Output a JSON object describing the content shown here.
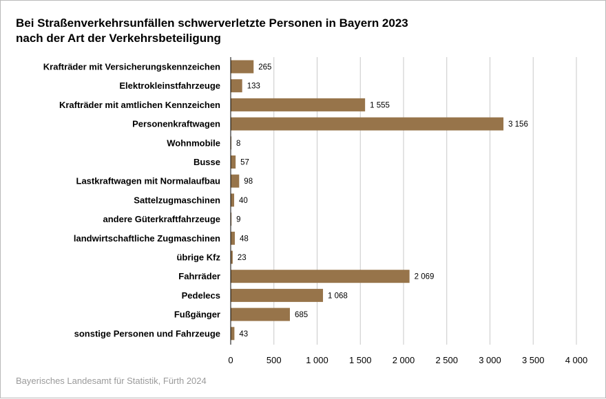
{
  "chart_data": {
    "type": "bar",
    "orientation": "horizontal",
    "title_line1": "Bei Straßenverkehrsunfällen schwerverletzte Personen in Bayern 2023",
    "title_line2": "nach der Art der Verkehrsbeteiligung",
    "categories": [
      "Krafträder mit Versicherungskennzeichen",
      "Elektrokleinstfahrzeuge",
      "Krafträder mit amtlichen Kennzeichen",
      "Personenkraftwagen",
      "Wohnmobile",
      "Busse",
      "Lastkraftwagen mit Normalaufbau",
      "Sattelzugmaschinen",
      "andere Güterkraftfahrzeuge",
      "landwirtschaftliche Zugmaschinen",
      "übrige Kfz",
      "Fahrräder",
      "Pedelecs",
      "Fußgänger",
      "sonstige Personen und Fahrzeuge"
    ],
    "values": [
      265,
      133,
      1555,
      3156,
      8,
      57,
      98,
      40,
      9,
      48,
      23,
      2069,
      1068,
      685,
      43
    ],
    "value_labels": [
      "265",
      "133",
      "1 555",
      "3 156",
      "8",
      "57",
      "98",
      "40",
      "9",
      "48",
      "23",
      "2 069",
      "1 068",
      "685",
      "43"
    ],
    "xlim": [
      0,
      4000
    ],
    "x_ticks": [
      0,
      500,
      1000,
      1500,
      2000,
      2500,
      3000,
      3500,
      4000
    ],
    "x_tick_labels": [
      "0",
      "500",
      "1 000",
      "1 500",
      "2 000",
      "2 500",
      "3 000",
      "3 500",
      "4 000"
    ],
    "xlabel": "",
    "ylabel": "",
    "grid": "vertical",
    "legend": "none",
    "bar_color": "#97744a",
    "grid_color": "#c8c8c8"
  },
  "source": "Bayerisches Landesamt für Statistik, Fürth 2024"
}
